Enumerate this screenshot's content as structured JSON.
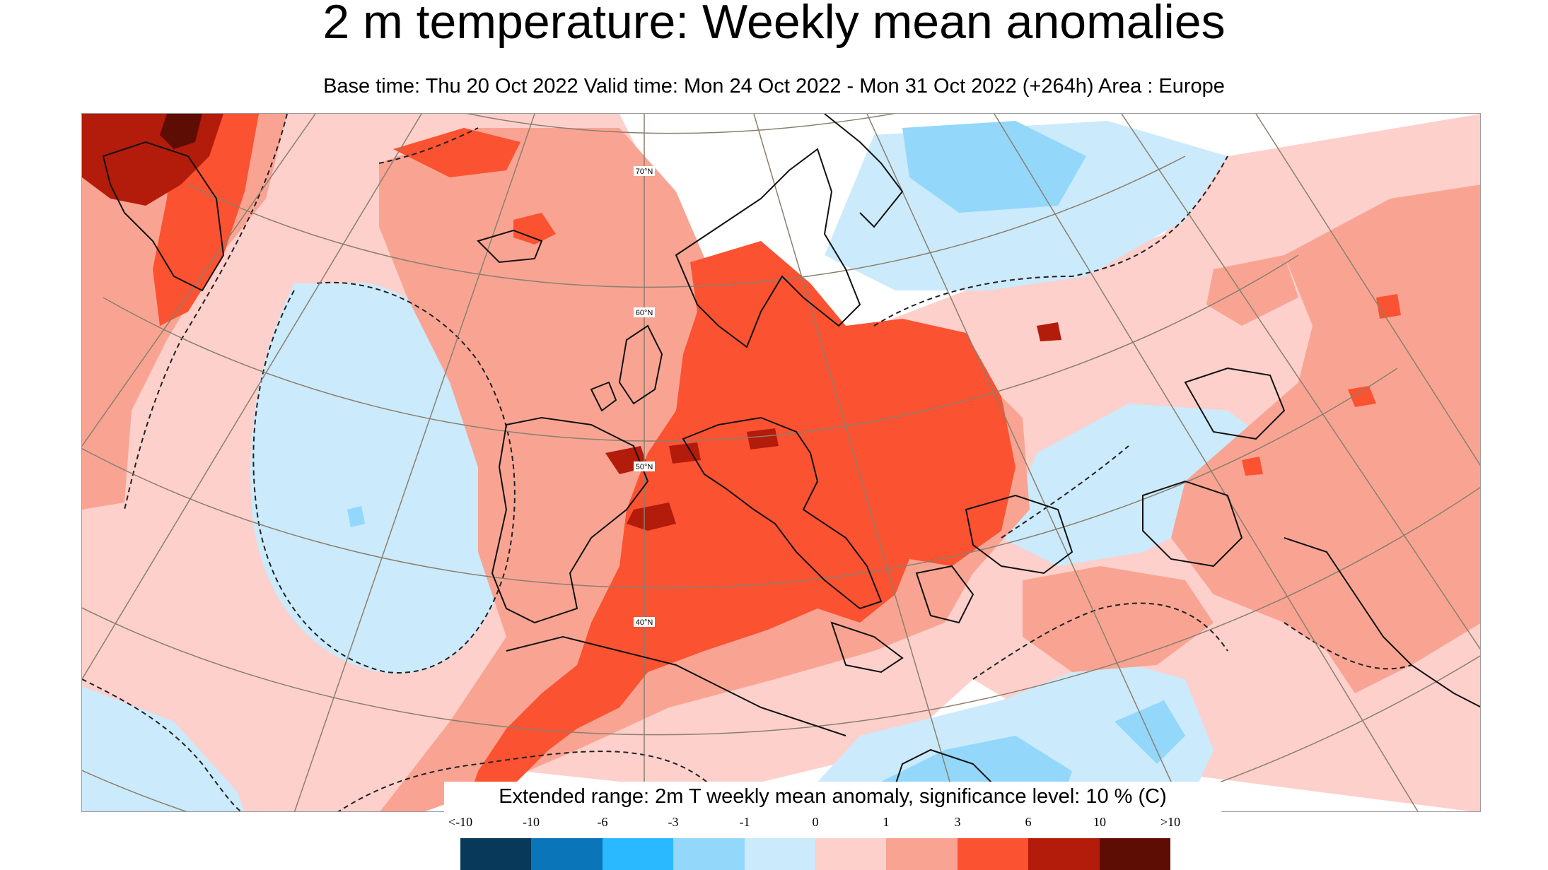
{
  "title": "2 m temperature: Weekly mean anomalies",
  "subtitle": "Base time: Thu 20 Oct 2022 Valid time: Mon 24 Oct 2022 - Mon 31 Oct 2022 (+264h) Area : Europe",
  "map": {
    "latitude_labels": [
      "70°N",
      "60°N",
      "50°N",
      "40°N"
    ]
  },
  "legend": {
    "caption": "Extended range: 2m T weekly mean anomaly, significance level: 10 % (C)",
    "tick_labels": [
      "<-10",
      "-10",
      "-6",
      "-3",
      "-1",
      "0",
      "1",
      "3",
      "6",
      "10",
      ">10"
    ],
    "colors": [
      "#08385a",
      "#0a75b8",
      "#2ab8ff",
      "#93d7fb",
      "#cbeafc",
      "#fdd0cb",
      "#f9a493",
      "#fb5231",
      "#b31b0a",
      "#5e0d05"
    ]
  }
}
